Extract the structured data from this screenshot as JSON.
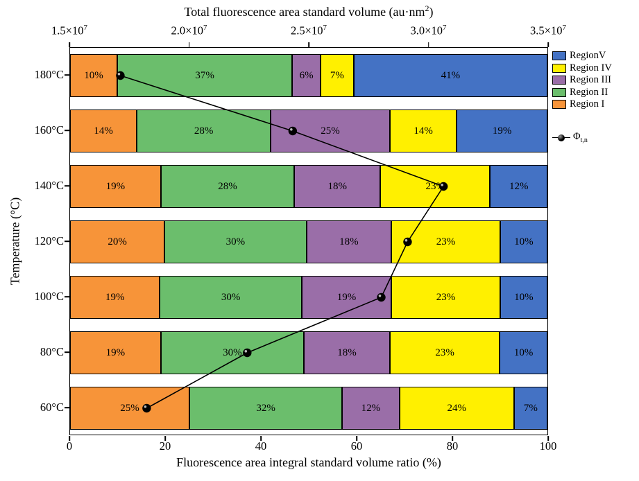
{
  "chart_data": {
    "type": "bar",
    "orientation": "horizontal-stacked-with-line-overlay",
    "top_axis": {
      "title_prefix": "Total fluorescence area standard volume (au·nm",
      "title_exp": "2",
      "title_suffix": ")",
      "ticks": [
        {
          "base": "1.5×10",
          "exp": "7"
        },
        {
          "base": "2.0×10",
          "exp": "7"
        },
        {
          "base": "2.5×10",
          "exp": "7"
        },
        {
          "base": "3.0×10",
          "exp": "7"
        },
        {
          "base": "3.5×10",
          "exp": "7"
        }
      ],
      "range": [
        15000000,
        35000000
      ]
    },
    "bottom_axis": {
      "title": "Fluorescence area integral standard volume ratio (%)",
      "ticks": [
        "0",
        "20",
        "40",
        "60",
        "80",
        "100"
      ],
      "range": [
        0,
        100
      ]
    },
    "ylabel": "Temperature (°C)",
    "categories": [
      "180°C",
      "160°C",
      "140°C",
      "120°C",
      "100°C",
      "80°C",
      "60°C"
    ],
    "value_suffix": "%",
    "series": [
      {
        "name": "Region I",
        "color": "#F79439",
        "values": [
          10,
          14,
          19,
          20,
          19,
          19,
          25
        ]
      },
      {
        "name": "Region II",
        "color": "#6BBE6C",
        "values": [
          37,
          28,
          28,
          30,
          30,
          30,
          32
        ]
      },
      {
        "name": "Region III",
        "color": "#9A6EA8",
        "values": [
          6,
          25,
          18,
          18,
          19,
          18,
          12
        ]
      },
      {
        "name": "Region IV",
        "color": "#FFF000",
        "values": [
          7,
          14,
          23,
          23,
          23,
          23,
          24
        ]
      },
      {
        "name": "RegionV",
        "color": "#4472C4",
        "values": [
          41,
          19,
          12,
          10,
          10,
          10,
          7
        ]
      }
    ],
    "line_series": {
      "name": "Φt,n",
      "color": "#000000",
      "values": [
        17100000,
        24300000,
        30600000,
        29100000,
        28000000,
        22400000,
        18200000
      ]
    },
    "legend": {
      "items": [
        {
          "label": "RegionV",
          "color": "#4472C4"
        },
        {
          "label": "Region IV",
          "color": "#FFF000"
        },
        {
          "label": "Region III",
          "color": "#9A6EA8"
        },
        {
          "label": "Region II",
          "color": "#6BBE6C"
        },
        {
          "label": "Region I",
          "color": "#F79439"
        }
      ],
      "line_item": {
        "symbol": "Φ",
        "sub": "t,n"
      }
    }
  }
}
